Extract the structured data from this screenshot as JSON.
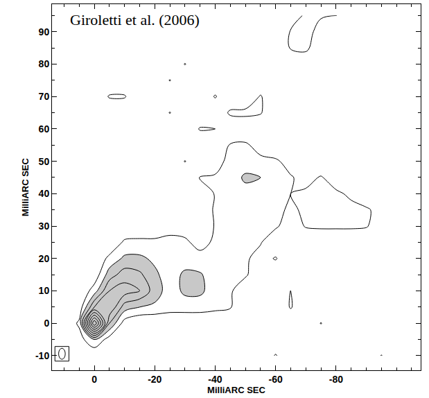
{
  "chart_data": {
    "type": "contour",
    "title": "Giroletti et al. (2006)",
    "xlabel": "MilliARC SEC",
    "ylabel": "MilliARC SEC",
    "xlim": [
      14,
      -108
    ],
    "ylim": [
      -14.5,
      98.5
    ],
    "xticks": [
      0,
      -20,
      -40,
      -60,
      -80
    ],
    "yticks": [
      -10,
      0,
      10,
      20,
      30,
      40,
      50,
      60,
      70,
      80,
      90
    ],
    "grid": false,
    "color": "#c8c8c8",
    "contour_levels": {
      "start": 1,
      "end": 10,
      "size": 1
    },
    "x": [
      10,
      5,
      0,
      -5,
      -10,
      -15,
      -20,
      -25,
      -30,
      -35,
      -40,
      -45,
      -50,
      -55,
      -60,
      -65,
      -70,
      -75,
      -80,
      -85,
      -90,
      -95,
      -100,
      -105
    ],
    "y": [
      -10,
      -5,
      0,
      5,
      10,
      15,
      20,
      25,
      30,
      35,
      40,
      45,
      50,
      55,
      60,
      65,
      70,
      75,
      80,
      85,
      90,
      95
    ],
    "z": [
      [
        0,
        0,
        0,
        0,
        0,
        0,
        0,
        0,
        0,
        0,
        0,
        0,
        0,
        0,
        1.1,
        0,
        0,
        0,
        0,
        0,
        0,
        1.05,
        0,
        0
      ],
      [
        0,
        0.5,
        2,
        0.5,
        0,
        0,
        0,
        0,
        0,
        0,
        0,
        0,
        0,
        0,
        0,
        0,
        0,
        0,
        0,
        0,
        0,
        0,
        0,
        0
      ],
      [
        0,
        1.2,
        10,
        3,
        0.5,
        0,
        0,
        0,
        0,
        0,
        0,
        0,
        0,
        0,
        0,
        0,
        0,
        1.05,
        0,
        0,
        0,
        0,
        0,
        0
      ],
      [
        0,
        0.3,
        4,
        5,
        2.5,
        2,
        1.8,
        1.5,
        1.5,
        1.5,
        1.3,
        1.1,
        0,
        0,
        0,
        1.1,
        0,
        0,
        0,
        0,
        0,
        0,
        0,
        0
      ],
      [
        0,
        0,
        1.5,
        4,
        4.5,
        4,
        2.5,
        1.5,
        2.2,
        2.2,
        1.5,
        1.2,
        0,
        0,
        0,
        1.05,
        0,
        0,
        0,
        0,
        0,
        0,
        0,
        0
      ],
      [
        0,
        0,
        0.3,
        2.5,
        3.5,
        3.2,
        2.2,
        1.5,
        2.2,
        2.1,
        1.5,
        1.3,
        1.2,
        0,
        0,
        0,
        0,
        0,
        0,
        0,
        0,
        0,
        0,
        0
      ],
      [
        0,
        0,
        0,
        1.3,
        2.2,
        2.2,
        1.8,
        1.4,
        1.5,
        1.4,
        1.3,
        1.2,
        1.2,
        0.5,
        1.1,
        0,
        0,
        0,
        0,
        0,
        0,
        0,
        0,
        0
      ],
      [
        0,
        0,
        0,
        0,
        1.2,
        1.3,
        1.3,
        1.3,
        1.2,
        0.6,
        1.2,
        1.4,
        1.3,
        1.1,
        0,
        0,
        0,
        0,
        0,
        0,
        0,
        0,
        0,
        0
      ],
      [
        0,
        0,
        0,
        0,
        0,
        0,
        0,
        0.6,
        0.5,
        0,
        1.1,
        1.4,
        1.5,
        1.4,
        1.2,
        0.3,
        1.1,
        1.2,
        1.2,
        1.2,
        1.1,
        0.3,
        0,
        0
      ],
      [
        0,
        0,
        0,
        0,
        0,
        0,
        0,
        0,
        0,
        0,
        1.2,
        1.5,
        1.5,
        1.5,
        1.3,
        0.8,
        1.2,
        1.3,
        1.3,
        1.3,
        1.2,
        0.5,
        0,
        0
      ],
      [
        0,
        0,
        0,
        0,
        0,
        0,
        0,
        0,
        0,
        0,
        1.1,
        1.5,
        1.6,
        1.5,
        1.3,
        1.0,
        1.2,
        1.3,
        1.2,
        0.8,
        0,
        0,
        0,
        0
      ],
      [
        0,
        0,
        0,
        0,
        0,
        0,
        0,
        0,
        0,
        1.05,
        1.1,
        1.4,
        2.2,
        2.0,
        1.3,
        1.1,
        0.6,
        1.1,
        0.4,
        0,
        0,
        0,
        0,
        0
      ],
      [
        0,
        0,
        0,
        0,
        0,
        0,
        0,
        0,
        1.05,
        0,
        0.6,
        1.3,
        1.4,
        1.3,
        1.2,
        0.5,
        0,
        0,
        0,
        0,
        0,
        0,
        0,
        0
      ],
      [
        0,
        0,
        0,
        0,
        0,
        0,
        0,
        0,
        0,
        0,
        0,
        1.1,
        1.2,
        0.5,
        0,
        0,
        0,
        0,
        0,
        0,
        0,
        0,
        0,
        0
      ],
      [
        0,
        0,
        0,
        0,
        0,
        0,
        0,
        0,
        0,
        1.1,
        1.0,
        0,
        0,
        0,
        0,
        0,
        0,
        0,
        0,
        0,
        0,
        0,
        0,
        0
      ],
      [
        0,
        0,
        0,
        0,
        0,
        0,
        0,
        1.05,
        0,
        0,
        0,
        1.2,
        1.3,
        1.1,
        0,
        0,
        0,
        0,
        0,
        0,
        0,
        0,
        0,
        0
      ],
      [
        0,
        0,
        0,
        1.1,
        1.1,
        0,
        0,
        0,
        0,
        0,
        1.1,
        0,
        0,
        1.1,
        0,
        0,
        0,
        0,
        0,
        0,
        0,
        0,
        0,
        0
      ],
      [
        0,
        0,
        0,
        0,
        0,
        0,
        0,
        1.05,
        0,
        0,
        0,
        0,
        0,
        0,
        0,
        0,
        0,
        0,
        0,
        0,
        0,
        0,
        0,
        0
      ],
      [
        0,
        0,
        0,
        0,
        0,
        0,
        0,
        0,
        1.05,
        0,
        0,
        0,
        0,
        0,
        0,
        0,
        0,
        0,
        0,
        0,
        0,
        0,
        0,
        0
      ],
      [
        0,
        0,
        0,
        0,
        0,
        0,
        0,
        0,
        0,
        0,
        0,
        0,
        0,
        0,
        0,
        1.1,
        1.3,
        0,
        0,
        0,
        0,
        0,
        0,
        0
      ],
      [
        0,
        0,
        0,
        0,
        0,
        0,
        0,
        0,
        0,
        0,
        0,
        0,
        0,
        0,
        0,
        1.1,
        1.4,
        0.6,
        0,
        0,
        0,
        0,
        0,
        0
      ],
      [
        0,
        0,
        0,
        0,
        0,
        0,
        0,
        0,
        0,
        0,
        0,
        0,
        0,
        0,
        0,
        0,
        1.3,
        1.1,
        1.05,
        0,
        0,
        0,
        0,
        0
      ]
    ]
  }
}
